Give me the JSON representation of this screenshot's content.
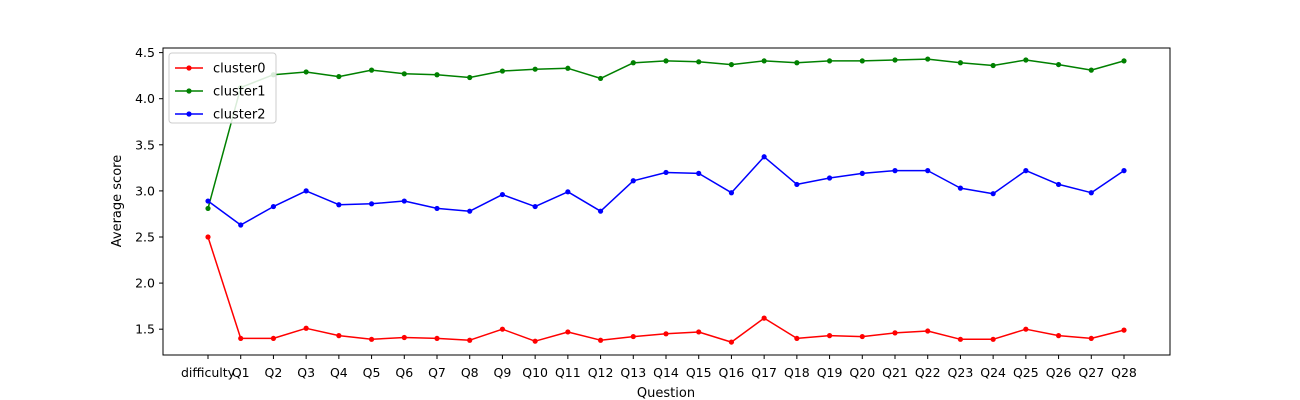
{
  "chart_data": {
    "type": "line",
    "categories": [
      "difficulty",
      "Q1",
      "Q2",
      "Q3",
      "Q4",
      "Q5",
      "Q6",
      "Q7",
      "Q8",
      "Q9",
      "Q10",
      "Q11",
      "Q12",
      "Q13",
      "Q14",
      "Q15",
      "Q16",
      "Q17",
      "Q18",
      "Q19",
      "Q20",
      "Q21",
      "Q22",
      "Q23",
      "Q24",
      "Q25",
      "Q26",
      "Q27",
      "Q28"
    ],
    "series": [
      {
        "name": "cluster0",
        "color": "#ff0000",
        "values": [
          2.5,
          1.4,
          1.4,
          1.51,
          1.43,
          1.39,
          1.41,
          1.4,
          1.38,
          1.5,
          1.37,
          1.47,
          1.38,
          1.42,
          1.45,
          1.47,
          1.36,
          1.62,
          1.4,
          1.43,
          1.42,
          1.46,
          1.48,
          1.39,
          1.39,
          1.5,
          1.43,
          1.4,
          1.49
        ]
      },
      {
        "name": "cluster1",
        "color": "#008000",
        "values": [
          2.81,
          4.12,
          4.26,
          4.29,
          4.24,
          4.31,
          4.27,
          4.26,
          4.23,
          4.3,
          4.32,
          4.33,
          4.22,
          4.39,
          4.41,
          4.4,
          4.37,
          4.41,
          4.39,
          4.41,
          4.41,
          4.42,
          4.43,
          4.39,
          4.36,
          4.42,
          4.37,
          4.31,
          4.41
        ]
      },
      {
        "name": "cluster2",
        "color": "#0000ff",
        "values": [
          2.89,
          2.63,
          2.83,
          3.0,
          2.85,
          2.86,
          2.89,
          2.81,
          2.78,
          2.96,
          2.83,
          2.99,
          2.78,
          3.11,
          3.2,
          3.19,
          2.98,
          3.37,
          3.07,
          3.14,
          3.19,
          3.22,
          3.22,
          3.03,
          2.97,
          3.22,
          3.07,
          2.98,
          3.22
        ]
      }
    ],
    "xlabel": "Question",
    "ylabel": "Average score",
    "ylim": [
      1.22,
      4.55
    ],
    "yticks": [
      1.5,
      2.0,
      2.5,
      3.0,
      3.5,
      4.0,
      4.5
    ],
    "grid": false,
    "legend_position": "top-left"
  }
}
